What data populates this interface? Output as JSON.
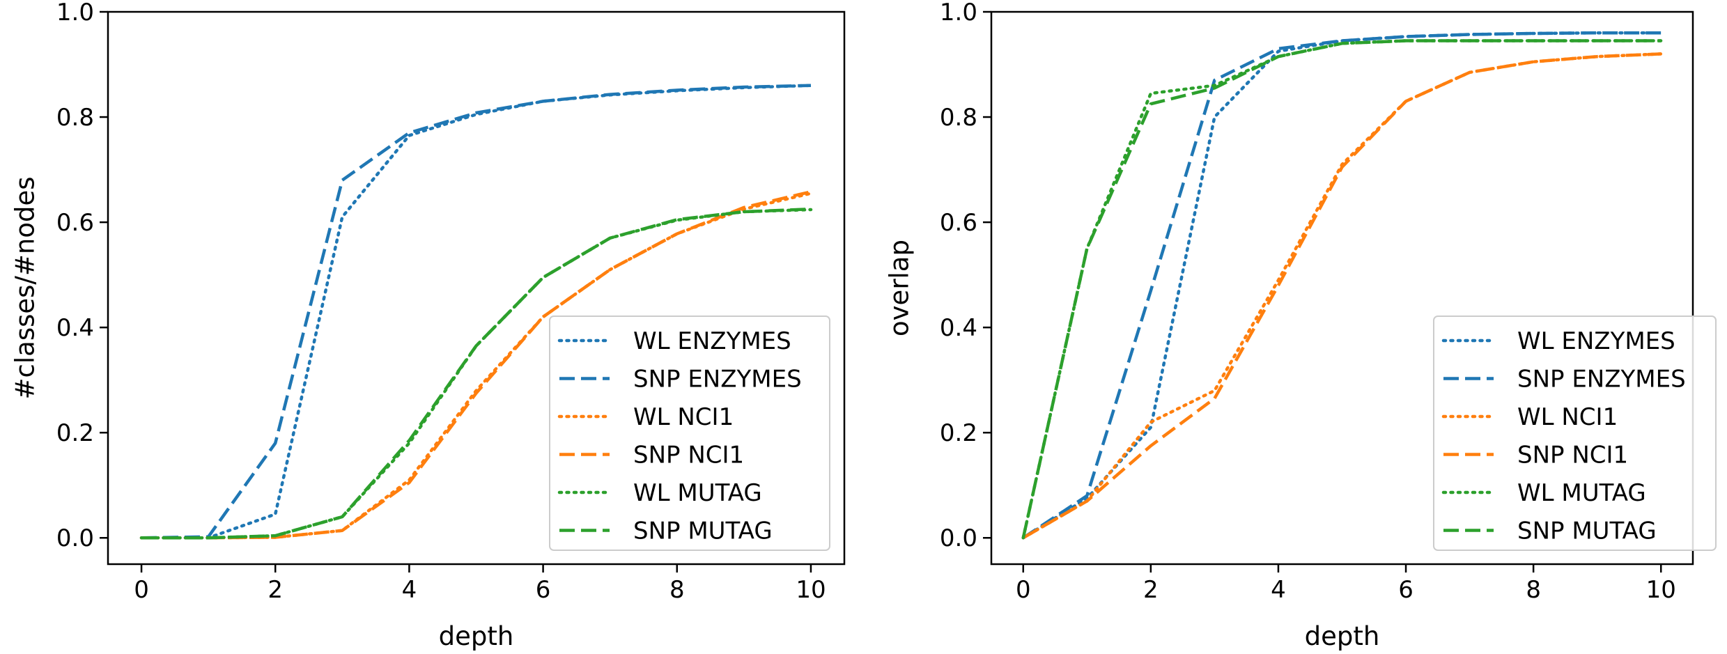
{
  "chart_data": [
    {
      "type": "line",
      "xlabel": "depth",
      "ylabel": "#classes/#nodes",
      "xlim": [
        -0.5,
        10.5
      ],
      "ylim": [
        -0.05,
        1.0
      ],
      "xticks": [
        "0",
        "2",
        "4",
        "6",
        "8",
        "10"
      ],
      "yticks": [
        "0.0",
        "0.2",
        "0.4",
        "0.6",
        "0.8",
        "1.0"
      ],
      "grid": false,
      "legend_position": "lower-right",
      "x": [
        0,
        1,
        2,
        3,
        4,
        5,
        6,
        7,
        8,
        9,
        10
      ],
      "series": [
        {
          "name": "WL ENZYMES",
          "color": "#1f77b4",
          "style": "dotted",
          "values": [
            0.0,
            0.0,
            0.045,
            0.61,
            0.765,
            0.805,
            0.83,
            0.842,
            0.85,
            0.856,
            0.86
          ]
        },
        {
          "name": "SNP ENZYMES",
          "color": "#1f77b4",
          "style": "dashed",
          "values": [
            0.0,
            0.002,
            0.18,
            0.68,
            0.77,
            0.808,
            0.83,
            0.843,
            0.851,
            0.857,
            0.86
          ]
        },
        {
          "name": "WL NCI1",
          "color": "#ff7f0e",
          "style": "dotted",
          "values": [
            0.0,
            0.0,
            0.001,
            0.014,
            0.11,
            0.28,
            0.42,
            0.51,
            0.578,
            0.625,
            0.655
          ]
        },
        {
          "name": "SNP NCI1",
          "color": "#ff7f0e",
          "style": "dashed",
          "values": [
            0.0,
            0.0,
            0.001,
            0.014,
            0.105,
            0.275,
            0.42,
            0.51,
            0.578,
            0.628,
            0.658
          ]
        },
        {
          "name": "WL MUTAG",
          "color": "#2ca02c",
          "style": "dotted",
          "values": [
            0.0,
            0.0,
            0.004,
            0.04,
            0.18,
            0.365,
            0.495,
            0.57,
            0.604,
            0.62,
            0.624
          ]
        },
        {
          "name": "SNP MUTAG",
          "color": "#2ca02c",
          "style": "dashed",
          "values": [
            0.0,
            0.0,
            0.004,
            0.04,
            0.185,
            0.365,
            0.495,
            0.57,
            0.605,
            0.62,
            0.625
          ]
        }
      ]
    },
    {
      "type": "line",
      "xlabel": "depth",
      "ylabel": "overlap",
      "xlim": [
        -0.5,
        10.5
      ],
      "ylim": [
        -0.05,
        1.0
      ],
      "xticks": [
        "0",
        "2",
        "4",
        "6",
        "8",
        "10"
      ],
      "yticks": [
        "0.0",
        "0.2",
        "0.4",
        "0.6",
        "0.8",
        "1.0"
      ],
      "grid": false,
      "legend_position": "lower-right",
      "x": [
        0,
        1,
        2,
        3,
        4,
        5,
        6,
        7,
        8,
        9,
        10
      ],
      "series": [
        {
          "name": "WL ENZYMES",
          "color": "#1f77b4",
          "style": "dotted",
          "values": [
            0.0,
            0.075,
            0.21,
            0.8,
            0.925,
            0.945,
            0.953,
            0.957,
            0.959,
            0.96,
            0.96
          ]
        },
        {
          "name": "SNP ENZYMES",
          "color": "#1f77b4",
          "style": "dashed",
          "values": [
            0.0,
            0.08,
            0.47,
            0.87,
            0.93,
            0.945,
            0.953,
            0.957,
            0.959,
            0.96,
            0.96
          ]
        },
        {
          "name": "WL NCI1",
          "color": "#ff7f0e",
          "style": "dotted",
          "values": [
            0.0,
            0.07,
            0.22,
            0.28,
            0.49,
            0.71,
            0.83,
            0.885,
            0.905,
            0.915,
            0.92
          ]
        },
        {
          "name": "SNP NCI1",
          "color": "#ff7f0e",
          "style": "dashed",
          "values": [
            0.0,
            0.07,
            0.175,
            0.265,
            0.48,
            0.705,
            0.83,
            0.885,
            0.905,
            0.915,
            0.92
          ]
        },
        {
          "name": "WL MUTAG",
          "color": "#2ca02c",
          "style": "dotted",
          "values": [
            0.0,
            0.55,
            0.845,
            0.86,
            0.915,
            0.94,
            0.945,
            0.945,
            0.945,
            0.945,
            0.945
          ]
        },
        {
          "name": "SNP MUTAG",
          "color": "#2ca02c",
          "style": "dashed",
          "values": [
            0.0,
            0.55,
            0.825,
            0.855,
            0.915,
            0.94,
            0.945,
            0.945,
            0.945,
            0.945,
            0.945
          ]
        }
      ]
    }
  ]
}
